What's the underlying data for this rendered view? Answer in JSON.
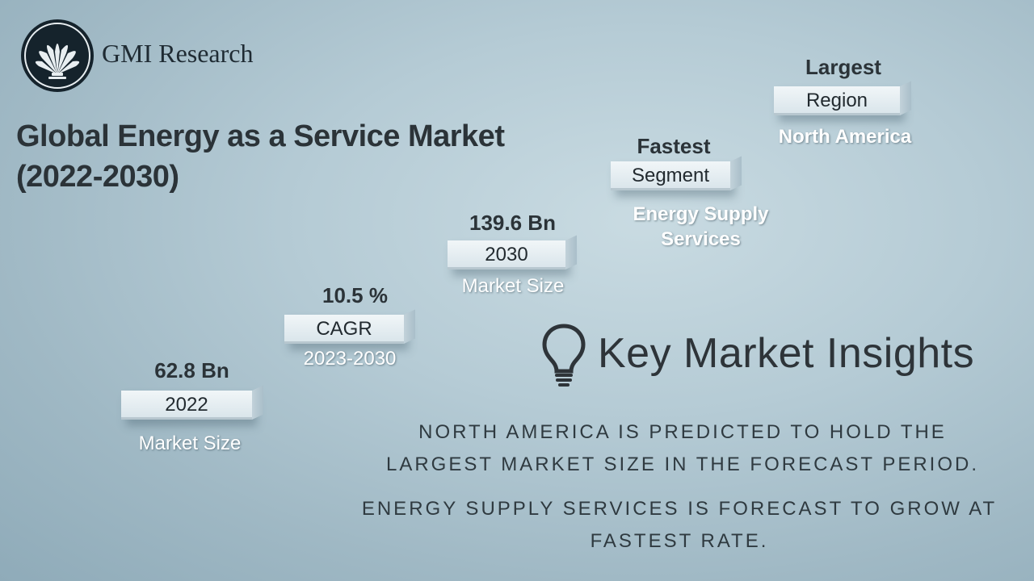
{
  "brand": {
    "name": "GMI Research",
    "logo_icon": "fan-palm-logo-icon"
  },
  "title": {
    "line1": "Global Energy as a Service Market",
    "line2": "(2022-2030)"
  },
  "steps": [
    {
      "value": "62.8 Bn",
      "label": "2022",
      "sub": "Market Size"
    },
    {
      "value": "10.5 %",
      "label": "CAGR",
      "sub": "2023-2030"
    },
    {
      "value": "139.6 Bn",
      "label": "2030",
      "sub": "Market Size"
    },
    {
      "value": "Fastest",
      "label": "Segment",
      "sub": "Energy Supply Services"
    },
    {
      "value": "Largest",
      "label": "Region",
      "sub": "North America"
    }
  ],
  "insights": {
    "icon": "lightbulb-icon",
    "title": "Key Market Insights",
    "point1": "NORTH AMERICA IS PREDICTED TO HOLD THE LARGEST MARKET SIZE IN THE FORECAST PERIOD.",
    "point2": "ENERGY SUPPLY SERVICES IS FORECAST TO GROW AT FASTEST RATE."
  },
  "colors": {
    "background": "#b5cbd5",
    "text_dark": "#2b3338",
    "text_light": "#ffffff"
  }
}
